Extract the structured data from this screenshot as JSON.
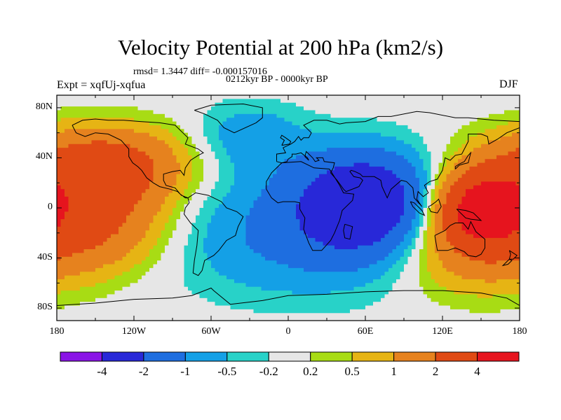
{
  "chart_data": {
    "type": "heatmap",
    "title": "Velocity Potential at 200 hPa (km2/s)",
    "stats_line": "rmsd= 1.3447 diff= -0.000157016",
    "period_line": "0212kyr BP - 0000kyr BP",
    "left_label": "Expt = xqfUj-xqfua",
    "right_label": "DJF",
    "x_range": [
      -180,
      180
    ],
    "y_range": [
      -90,
      90
    ],
    "lon_ticks": [
      {
        "value": -180,
        "label": "180"
      },
      {
        "value": -120,
        "label": "120W"
      },
      {
        "value": -60,
        "label": "60W"
      },
      {
        "value": 0,
        "label": "0"
      },
      {
        "value": 60,
        "label": "60E"
      },
      {
        "value": 120,
        "label": "120E"
      },
      {
        "value": 180,
        "label": "180"
      }
    ],
    "lat_ticks": [
      {
        "value": 80,
        "label": "80N"
      },
      {
        "value": 40,
        "label": "40N"
      },
      {
        "value": 0,
        "label": "0"
      },
      {
        "value": -40,
        "label": "40S"
      },
      {
        "value": -80,
        "label": "80S"
      }
    ],
    "colorbar": {
      "colors": [
        "#8a14e6",
        "#2828d8",
        "#1e6ee0",
        "#14a0e6",
        "#28d2c8",
        "#e6e6e6",
        "#a8dc14",
        "#e6b414",
        "#e6821e",
        "#e04a14",
        "#e6141e"
      ],
      "levels": [
        -4,
        -2,
        -1,
        -0.5,
        -0.2,
        0.2,
        0.5,
        1,
        2,
        4
      ],
      "labels": [
        "-4",
        "-2",
        "-1",
        "-0.5",
        "-0.2",
        "0.2",
        "0.5",
        "1",
        "2",
        "4"
      ]
    },
    "field_centers": [
      {
        "lon": 60,
        "lat": 5,
        "value": -3.0
      },
      {
        "lon": 10,
        "lat": -20,
        "value": -1.2
      },
      {
        "lon": -30,
        "lat": 60,
        "value": -0.9
      },
      {
        "lon": -145,
        "lat": 35,
        "value": 2.8
      },
      {
        "lon": -155,
        "lat": -10,
        "value": 2.3
      },
      {
        "lon": 150,
        "lat": 0,
        "value": 4.2
      },
      {
        "lon": 140,
        "lat": -30,
        "value": 1.6
      }
    ]
  }
}
